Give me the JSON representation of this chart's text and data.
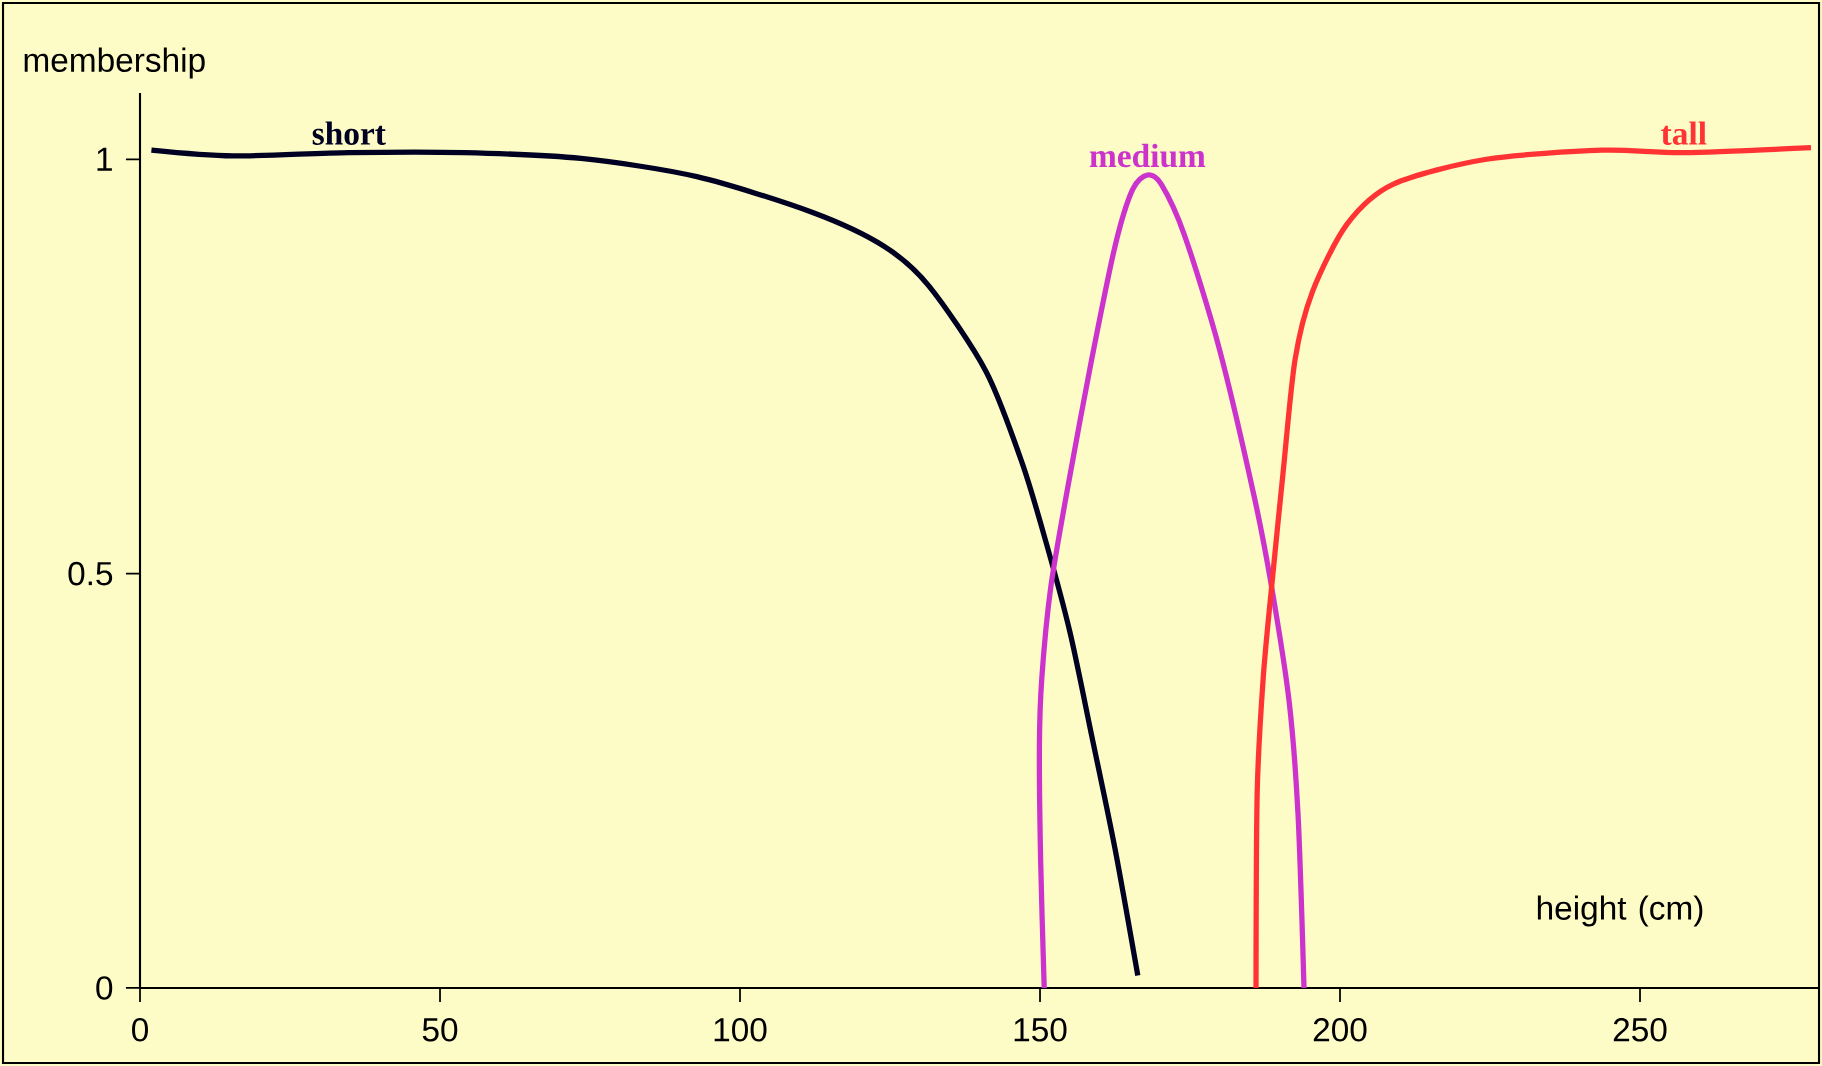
{
  "chart_data": {
    "type": "line",
    "xlabel": "height (cm)",
    "ylabel": "membership",
    "xlim": [
      0,
      280
    ],
    "ylim": [
      0,
      1.08
    ],
    "xticks": [
      0,
      50,
      100,
      150,
      200,
      250
    ],
    "yticks": [
      0,
      0.5,
      1
    ],
    "marker": "none",
    "line_style": "solid",
    "grid": false,
    "legend": false,
    "series": [
      {
        "name": "short",
        "color": "#000022",
        "x": [
          1.9,
          15.5,
          34.8,
          54,
          73.5,
          92.8,
          112,
          124,
          131.5,
          141,
          147,
          151,
          155,
          158.6,
          162.5,
          166.3
        ],
        "values": [
          1.011,
          1.004,
          1.008,
          1.008,
          1.001,
          0.979,
          0.936,
          0.895,
          0.847,
          0.744,
          0.634,
          0.538,
          0.429,
          0.305,
          0.168,
          0.015
        ]
      },
      {
        "name": "medium",
        "color": "#cc33cc",
        "x": [
          150.7,
          150.1,
          149.9,
          150.3,
          151.8,
          154.7,
          158.6,
          162.5,
          165.4,
          167.9,
          170.2,
          174.1,
          179.9,
          185.7,
          188.6,
          191.5,
          193,
          194
        ],
        "values": [
          0,
          0.155,
          0.292,
          0.374,
          0.484,
          0.607,
          0.758,
          0.895,
          0.963,
          0.981,
          0.97,
          0.908,
          0.771,
          0.593,
          0.484,
          0.347,
          0.21,
          0
        ]
      },
      {
        "name": "tall",
        "color": "#ff3333",
        "x": [
          186,
          186.2,
          187.2,
          188.6,
          190.5,
          192.5,
          195.4,
          201.2,
          208.9,
          224.4,
          243.7,
          257.3,
          278.5
        ],
        "values": [
          0,
          0.237,
          0.374,
          0.484,
          0.621,
          0.758,
          0.84,
          0.922,
          0.97,
          1.0,
          1.011,
          1.008,
          1.014
        ]
      }
    ]
  }
}
